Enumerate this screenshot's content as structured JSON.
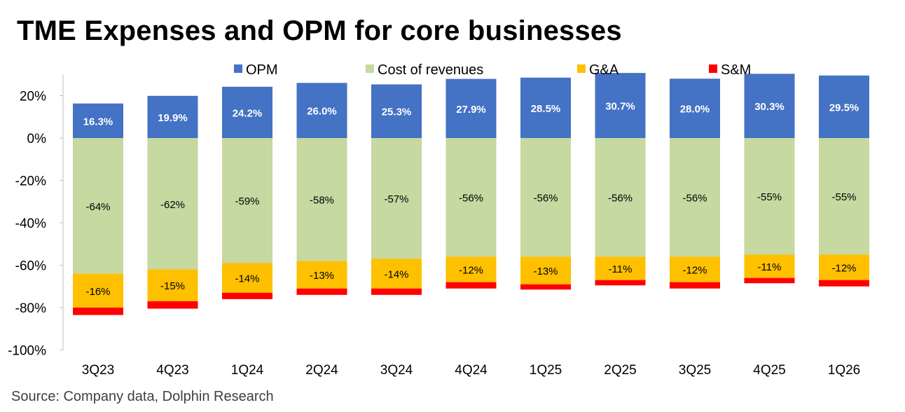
{
  "chart_data": {
    "type": "bar",
    "stacked": true,
    "title": "TME Expenses and OPM for core businesses",
    "source": "Source: Company data, Dolphin Research",
    "categories": [
      "3Q23",
      "4Q23",
      "1Q24",
      "2Q24",
      "3Q24",
      "4Q24",
      "1Q25",
      "2Q25",
      "3Q25",
      "4Q25",
      "1Q26"
    ],
    "series": [
      {
        "name": "OPM",
        "color": "#4472c4",
        "values": [
          16.3,
          19.9,
          24.2,
          26.0,
          25.3,
          27.9,
          28.5,
          30.7,
          28.0,
          30.3,
          29.5
        ],
        "labels": [
          "16.3%",
          "19.9%",
          "24.2%",
          "26.0%",
          "25.3%",
          "27.9%",
          "28.5%",
          "30.7%",
          "28.0%",
          "30.3%",
          "29.5%"
        ]
      },
      {
        "name": "Cost of revenues",
        "color": "#c5d9a0",
        "values": [
          -64,
          -62,
          -59,
          -58,
          -57,
          -56,
          -56,
          -56,
          -56,
          -55,
          -55
        ],
        "labels": [
          "-64%",
          "-62%",
          "-59%",
          "-58%",
          "-57%",
          "-56%",
          "-56%",
          "-56%",
          "-56%",
          "-55%",
          "-55%"
        ]
      },
      {
        "name": "G&A",
        "color": "#ffc000",
        "values": [
          -16,
          -15,
          -14,
          -13,
          -14,
          -12,
          -13,
          -11,
          -12,
          -11,
          -12
        ],
        "labels": [
          "-16%",
          "-15%",
          "-14%",
          "-13%",
          "-14%",
          "-12%",
          "-13%",
          "-11%",
          "-12%",
          "-11%",
          "-12%"
        ]
      },
      {
        "name": "S&M",
        "color": "#ff0000",
        "values": [
          -3.5,
          -3.5,
          -3,
          -3,
          -3,
          -3,
          -2.5,
          -2.5,
          -3,
          -2.5,
          -3
        ],
        "labels": []
      }
    ],
    "ylim": [
      -100,
      30
    ],
    "yticks": [
      20,
      0,
      -20,
      -40,
      -60,
      -80,
      -100
    ],
    "ytick_labels": [
      "20%",
      "0%",
      "-20%",
      "-40%",
      "-60%",
      "-80%",
      "-100%"
    ],
    "legend_position": "top",
    "grid": false
  }
}
